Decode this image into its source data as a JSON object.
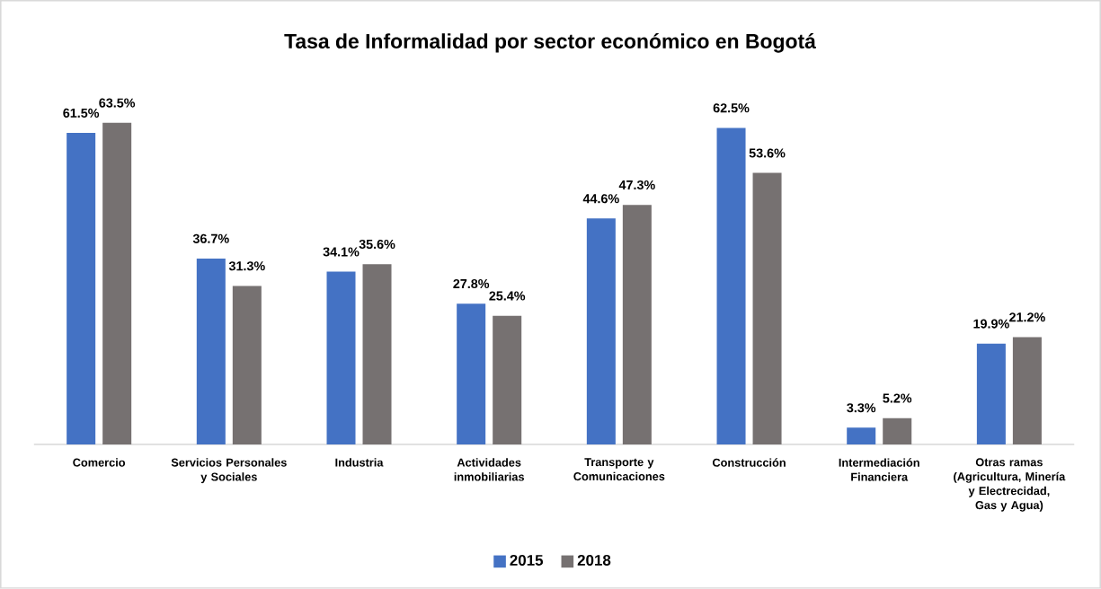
{
  "chart_data": {
    "type": "bar",
    "title": "Tasa de Informalidad por sector económico en Bogotá",
    "categories": [
      "Comercio",
      "Servicios Personales y Sociales",
      "Industria",
      "Actividades inmobiliarias",
      "Transporte y Comunicaciones",
      "Construcción",
      "Intermediación Financiera",
      "Otras ramas (Agricultura, Minería y Electrecidad, Gas y Agua)"
    ],
    "series": [
      {
        "name": "2015",
        "color": "#4472c4",
        "values": [
          61.5,
          36.7,
          34.1,
          27.8,
          44.6,
          62.5,
          3.3,
          19.9
        ],
        "value_labels": [
          "61.5%",
          "36.7%",
          "34.1%",
          "27.8%",
          "44.6%",
          "62.5%",
          "3.3%",
          "19.9%"
        ]
      },
      {
        "name": "2018",
        "color": "#767171",
        "values": [
          63.5,
          31.3,
          35.6,
          25.4,
          47.3,
          53.6,
          5.2,
          21.2
        ],
        "value_labels": [
          "63.5%",
          "31.3%",
          "35.6%",
          "25.4%",
          "47.3%",
          "53.6%",
          "5.2%",
          "21.2%"
        ]
      }
    ],
    "legend": "bottom"
  }
}
